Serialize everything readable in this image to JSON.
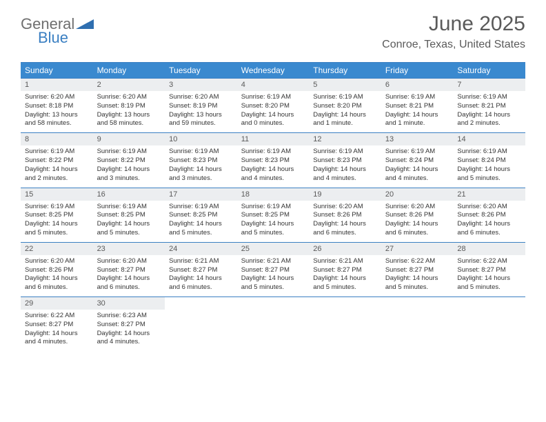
{
  "logo": {
    "text1": "General",
    "text2": "Blue"
  },
  "title": "June 2025",
  "location": "Conroe, Texas, United States",
  "header_color": "#3a89cf",
  "border_color": "#3a7fc2",
  "daynum_bg": "#eceef0",
  "weekdays": [
    "Sunday",
    "Monday",
    "Tuesday",
    "Wednesday",
    "Thursday",
    "Friday",
    "Saturday"
  ],
  "weeks": [
    [
      {
        "n": "1",
        "sr": "6:20 AM",
        "ss": "8:18 PM",
        "dl": "Daylight: 13 hours and 58 minutes."
      },
      {
        "n": "2",
        "sr": "6:20 AM",
        "ss": "8:19 PM",
        "dl": "Daylight: 13 hours and 58 minutes."
      },
      {
        "n": "3",
        "sr": "6:20 AM",
        "ss": "8:19 PM",
        "dl": "Daylight: 13 hours and 59 minutes."
      },
      {
        "n": "4",
        "sr": "6:19 AM",
        "ss": "8:20 PM",
        "dl": "Daylight: 14 hours and 0 minutes."
      },
      {
        "n": "5",
        "sr": "6:19 AM",
        "ss": "8:20 PM",
        "dl": "Daylight: 14 hours and 1 minute."
      },
      {
        "n": "6",
        "sr": "6:19 AM",
        "ss": "8:21 PM",
        "dl": "Daylight: 14 hours and 1 minute."
      },
      {
        "n": "7",
        "sr": "6:19 AM",
        "ss": "8:21 PM",
        "dl": "Daylight: 14 hours and 2 minutes."
      }
    ],
    [
      {
        "n": "8",
        "sr": "6:19 AM",
        "ss": "8:22 PM",
        "dl": "Daylight: 14 hours and 2 minutes."
      },
      {
        "n": "9",
        "sr": "6:19 AM",
        "ss": "8:22 PM",
        "dl": "Daylight: 14 hours and 3 minutes."
      },
      {
        "n": "10",
        "sr": "6:19 AM",
        "ss": "8:23 PM",
        "dl": "Daylight: 14 hours and 3 minutes."
      },
      {
        "n": "11",
        "sr": "6:19 AM",
        "ss": "8:23 PM",
        "dl": "Daylight: 14 hours and 4 minutes."
      },
      {
        "n": "12",
        "sr": "6:19 AM",
        "ss": "8:23 PM",
        "dl": "Daylight: 14 hours and 4 minutes."
      },
      {
        "n": "13",
        "sr": "6:19 AM",
        "ss": "8:24 PM",
        "dl": "Daylight: 14 hours and 4 minutes."
      },
      {
        "n": "14",
        "sr": "6:19 AM",
        "ss": "8:24 PM",
        "dl": "Daylight: 14 hours and 5 minutes."
      }
    ],
    [
      {
        "n": "15",
        "sr": "6:19 AM",
        "ss": "8:25 PM",
        "dl": "Daylight: 14 hours and 5 minutes."
      },
      {
        "n": "16",
        "sr": "6:19 AM",
        "ss": "8:25 PM",
        "dl": "Daylight: 14 hours and 5 minutes."
      },
      {
        "n": "17",
        "sr": "6:19 AM",
        "ss": "8:25 PM",
        "dl": "Daylight: 14 hours and 5 minutes."
      },
      {
        "n": "18",
        "sr": "6:19 AM",
        "ss": "8:25 PM",
        "dl": "Daylight: 14 hours and 5 minutes."
      },
      {
        "n": "19",
        "sr": "6:20 AM",
        "ss": "8:26 PM",
        "dl": "Daylight: 14 hours and 6 minutes."
      },
      {
        "n": "20",
        "sr": "6:20 AM",
        "ss": "8:26 PM",
        "dl": "Daylight: 14 hours and 6 minutes."
      },
      {
        "n": "21",
        "sr": "6:20 AM",
        "ss": "8:26 PM",
        "dl": "Daylight: 14 hours and 6 minutes."
      }
    ],
    [
      {
        "n": "22",
        "sr": "6:20 AM",
        "ss": "8:26 PM",
        "dl": "Daylight: 14 hours and 6 minutes."
      },
      {
        "n": "23",
        "sr": "6:20 AM",
        "ss": "8:27 PM",
        "dl": "Daylight: 14 hours and 6 minutes."
      },
      {
        "n": "24",
        "sr": "6:21 AM",
        "ss": "8:27 PM",
        "dl": "Daylight: 14 hours and 6 minutes."
      },
      {
        "n": "25",
        "sr": "6:21 AM",
        "ss": "8:27 PM",
        "dl": "Daylight: 14 hours and 5 minutes."
      },
      {
        "n": "26",
        "sr": "6:21 AM",
        "ss": "8:27 PM",
        "dl": "Daylight: 14 hours and 5 minutes."
      },
      {
        "n": "27",
        "sr": "6:22 AM",
        "ss": "8:27 PM",
        "dl": "Daylight: 14 hours and 5 minutes."
      },
      {
        "n": "28",
        "sr": "6:22 AM",
        "ss": "8:27 PM",
        "dl": "Daylight: 14 hours and 5 minutes."
      }
    ],
    [
      {
        "n": "29",
        "sr": "6:22 AM",
        "ss": "8:27 PM",
        "dl": "Daylight: 14 hours and 4 minutes."
      },
      {
        "n": "30",
        "sr": "6:23 AM",
        "ss": "8:27 PM",
        "dl": "Daylight: 14 hours and 4 minutes."
      },
      null,
      null,
      null,
      null,
      null
    ]
  ]
}
